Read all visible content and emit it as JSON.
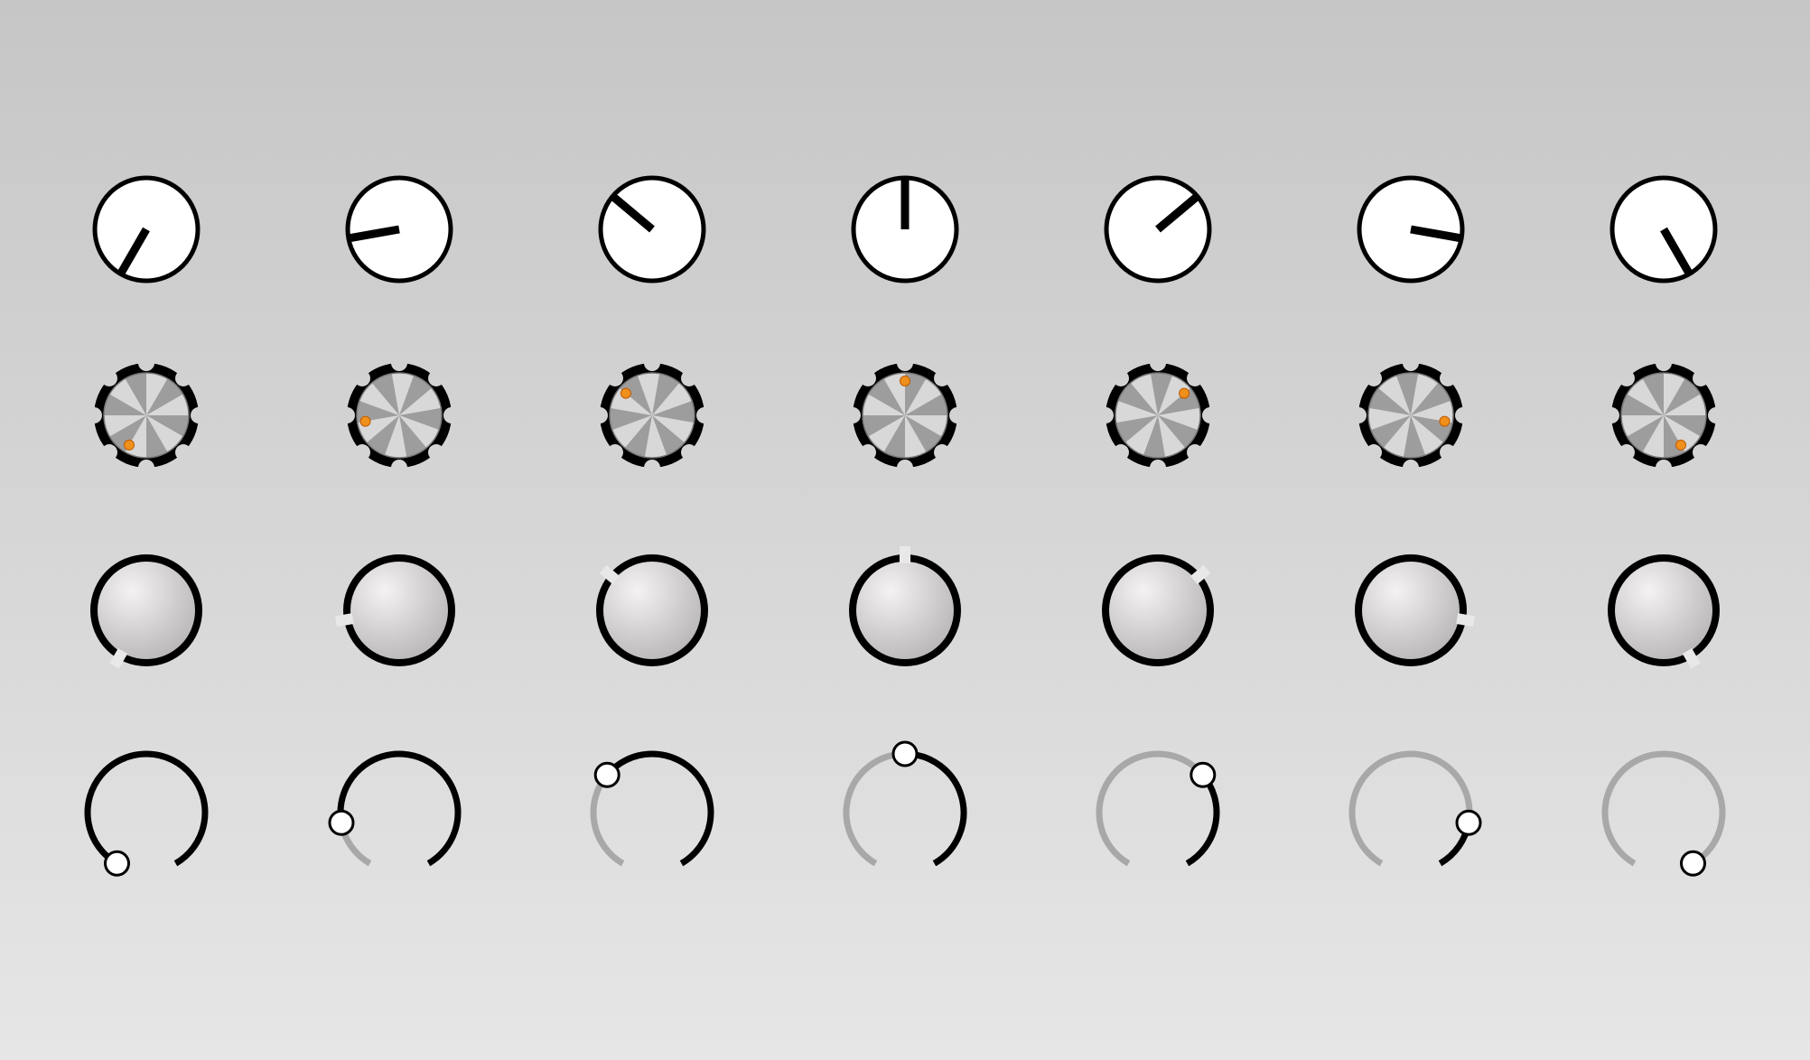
{
  "colors": {
    "background_top": "#c6c6c6",
    "background_bottom": "#e6e6e6",
    "stroke": "#000000",
    "knob_face": "#ffffff",
    "metal_light": "#d8d8d8",
    "metal_dark": "#8a8a8a",
    "indicator_orange": "#f0901c",
    "indicator_orange_edge": "#c05a00",
    "track_inactive": "#a8a8a8",
    "marker_light": "#e8e8e8"
  },
  "rows": [
    {
      "style": "white-pointer-knob",
      "icon": "pointer-dial-icon"
    },
    {
      "style": "metal-gear-knob",
      "icon": "gear-knob-icon"
    },
    {
      "style": "ring-knob",
      "icon": "ring-knob-icon"
    },
    {
      "style": "arc-slider-knob",
      "icon": "arc-slider-icon"
    }
  ],
  "knob_values": [
    0.0,
    0.1667,
    0.3333,
    0.5,
    0.6667,
    0.8333,
    1.0
  ],
  "sweep": {
    "min_angle_deg": -150,
    "max_angle_deg": 150
  }
}
